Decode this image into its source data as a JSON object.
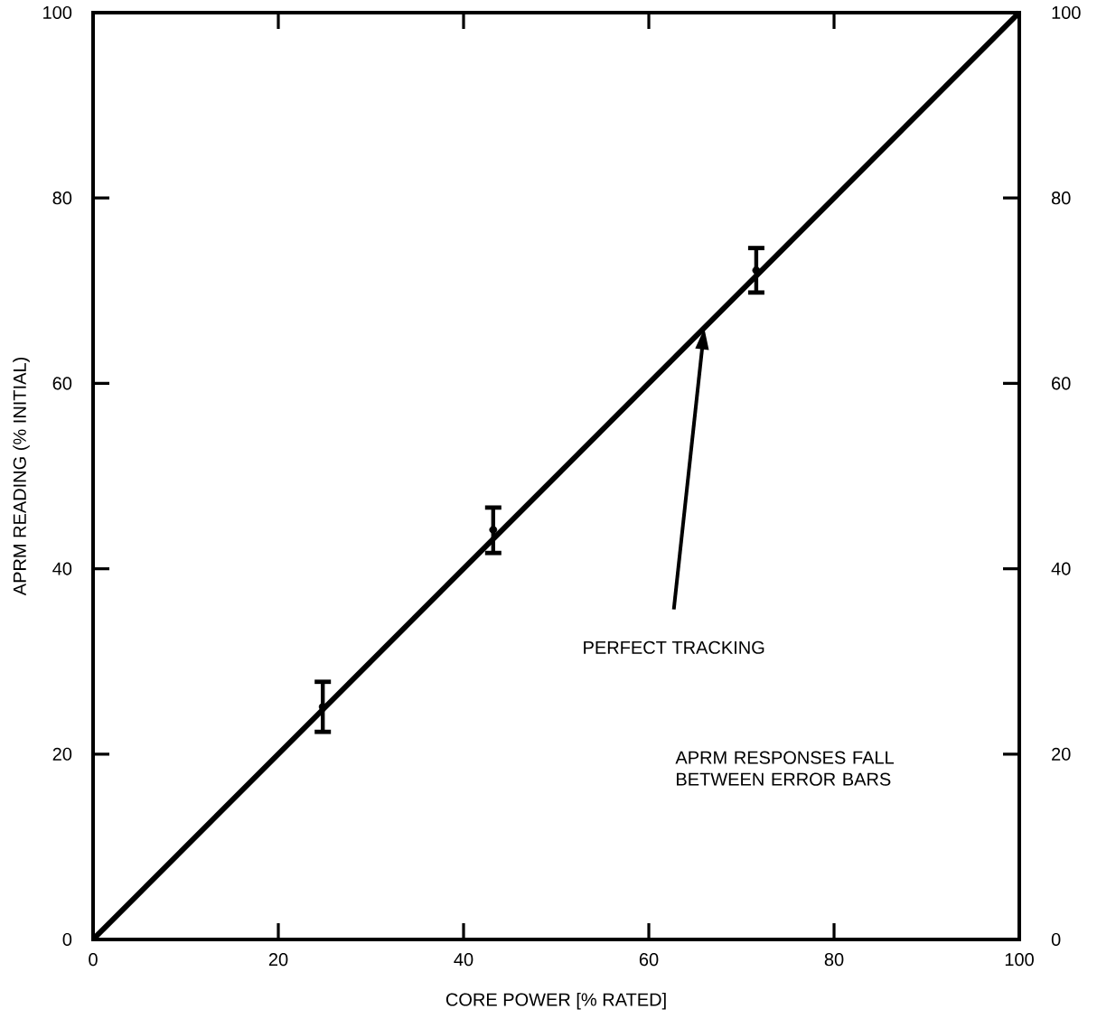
{
  "chart_data": {
    "type": "line",
    "xlabel": "CORE POWER [% RATED]",
    "ylabel": "APRM READING (% INITIAL)",
    "xlim": [
      0,
      100
    ],
    "ylim": [
      0,
      100
    ],
    "xticks": [
      0,
      20,
      40,
      60,
      80,
      100
    ],
    "yticks": [
      0,
      20,
      40,
      60,
      80,
      100
    ],
    "y2lim": [
      0,
      100
    ],
    "y2ticks": [
      0,
      20,
      40,
      60,
      80,
      100
    ],
    "series": [
      {
        "color": "#000000",
        "x": [
          0,
          100
        ],
        "values": [
          0,
          100
        ],
        "marker": "none"
      },
      {
        "type": "scatter",
        "color": "#000000",
        "x": [
          24.8,
          43.2,
          71.6
        ],
        "values": [
          25.1,
          44.2,
          72.2
        ],
        "errors": [
          [
            22.4,
            27.8
          ],
          [
            41.7,
            46.6
          ],
          [
            69.8,
            74.6
          ]
        ],
        "marker": "circle"
      }
    ],
    "annotations": [
      "PERFECT TRACKING",
      "APRM RESPONSES FALL BETWEEN ERROR BARS"
    ]
  }
}
